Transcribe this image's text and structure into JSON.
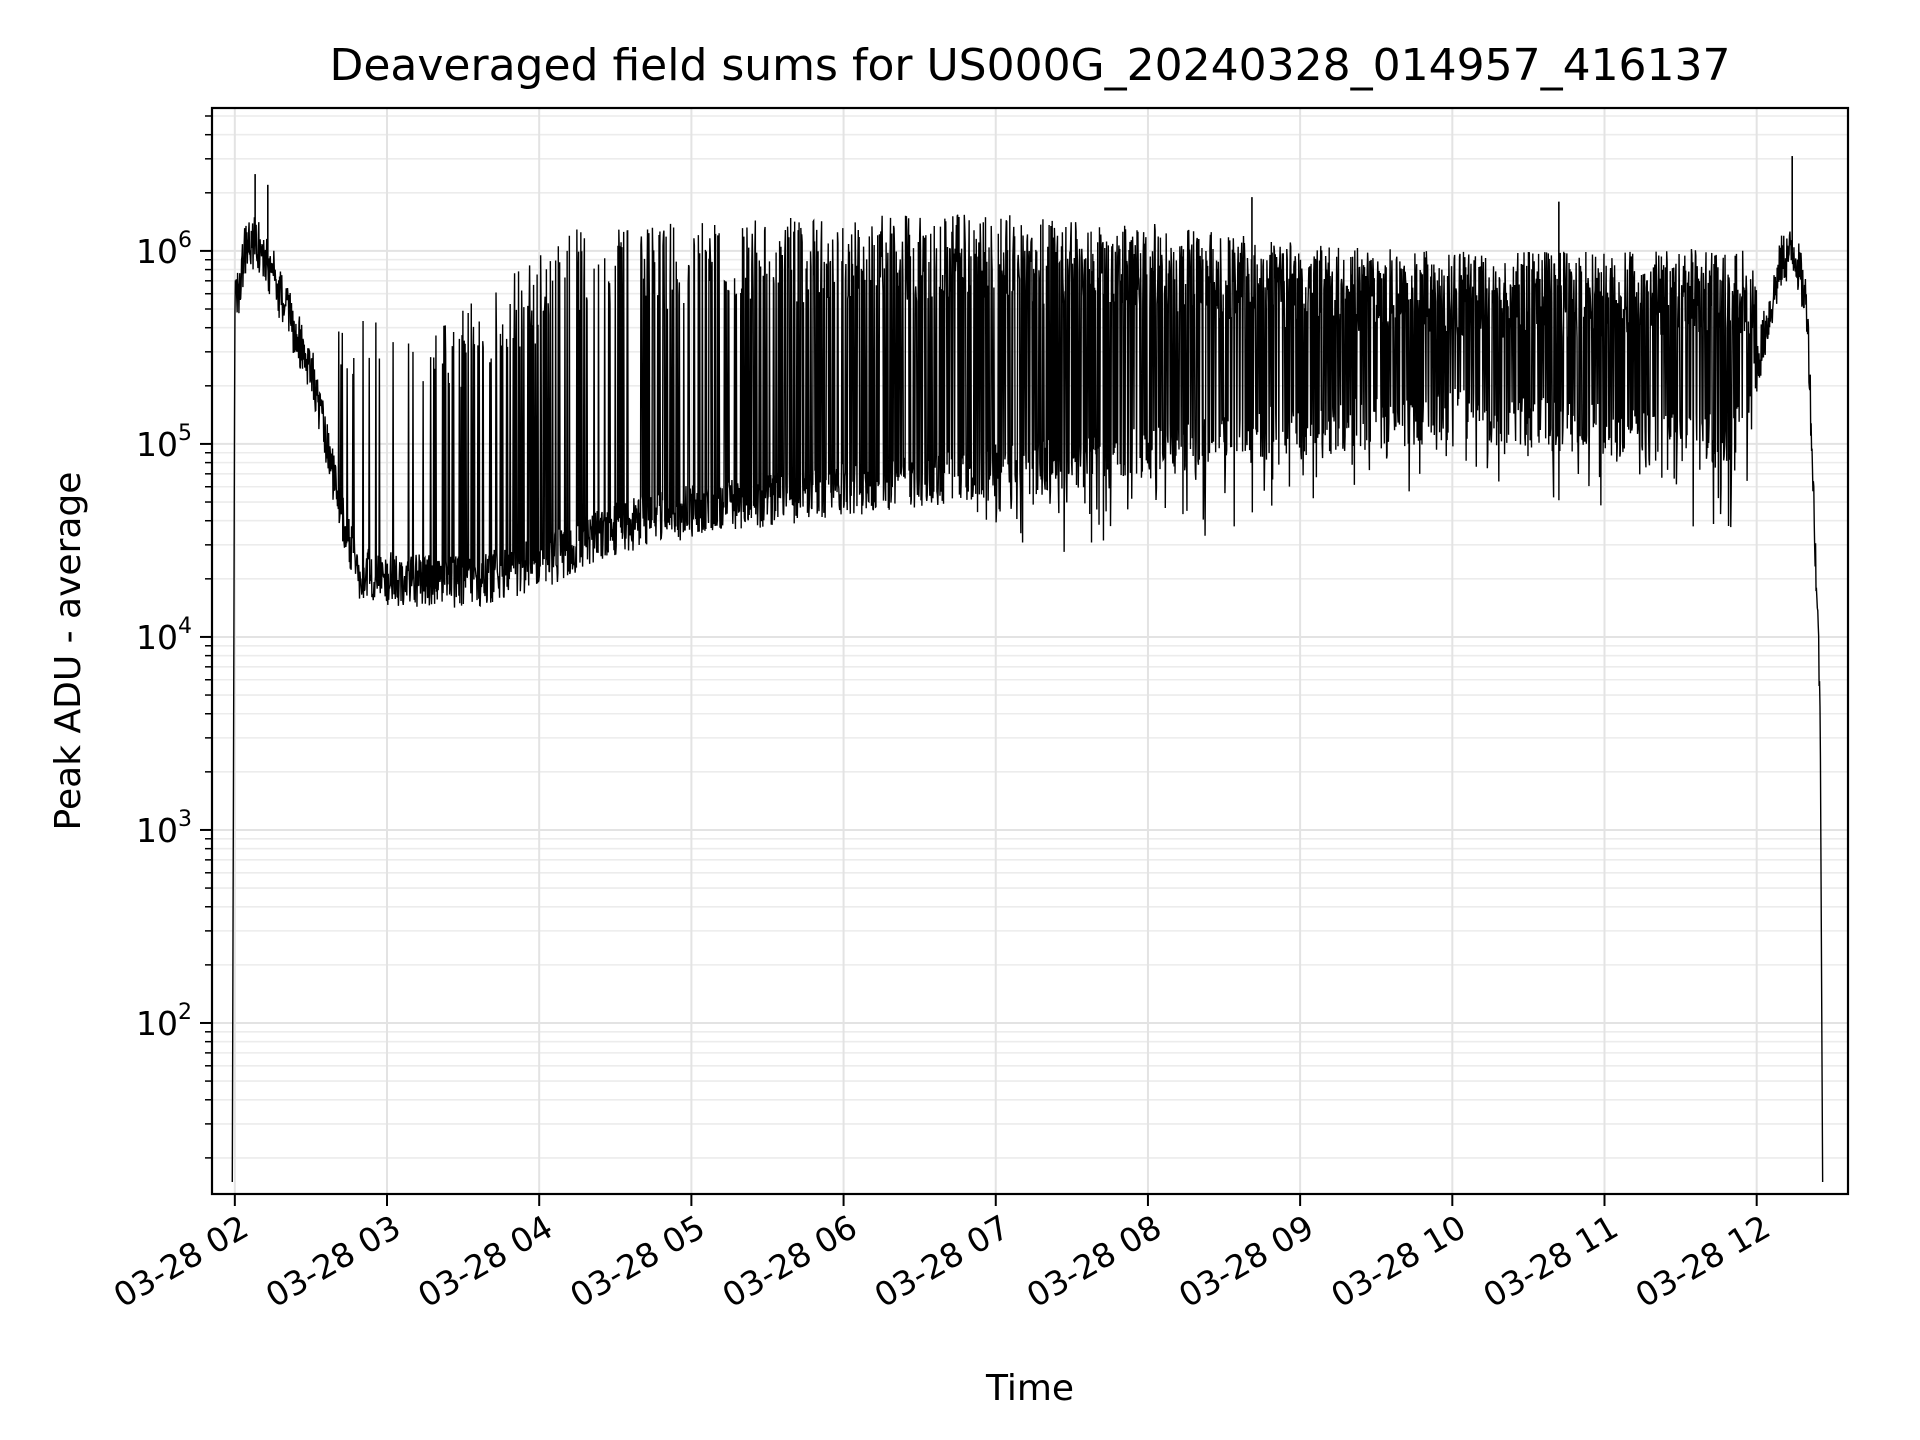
{
  "chart_data": {
    "type": "line",
    "title": "Deaveraged field sums for US000G_20240328_014957_416137",
    "xlabel": "Time",
    "ylabel": "Peak ADU - average",
    "y_scale": "log",
    "ylim": [
      13,
      5500000
    ],
    "xlim": [
      "2024-03-28T01:51:00",
      "2024-03-28T12:36:00"
    ],
    "grid": true,
    "line_color": "#000000",
    "x_ticks": [
      {
        "time": "2024-03-28T02:00:00",
        "label": "03-28 02"
      },
      {
        "time": "2024-03-28T03:00:00",
        "label": "03-28 03"
      },
      {
        "time": "2024-03-28T04:00:00",
        "label": "03-28 04"
      },
      {
        "time": "2024-03-28T05:00:00",
        "label": "03-28 05"
      },
      {
        "time": "2024-03-28T06:00:00",
        "label": "03-28 06"
      },
      {
        "time": "2024-03-28T07:00:00",
        "label": "03-28 07"
      },
      {
        "time": "2024-03-28T08:00:00",
        "label": "03-28 08"
      },
      {
        "time": "2024-03-28T09:00:00",
        "label": "03-28 09"
      },
      {
        "time": "2024-03-28T10:00:00",
        "label": "03-28 10"
      },
      {
        "time": "2024-03-28T11:00:00",
        "label": "03-28 11"
      },
      {
        "time": "2024-03-28T12:00:00",
        "label": "03-28 12"
      }
    ],
    "y_ticks": [
      {
        "value": 100,
        "base": "10",
        "exp": "2"
      },
      {
        "value": 1000,
        "base": "10",
        "exp": "3"
      },
      {
        "value": 10000,
        "base": "10",
        "exp": "4"
      },
      {
        "value": 100000,
        "base": "10",
        "exp": "5"
      },
      {
        "value": 1000000,
        "base": "10",
        "exp": "6"
      }
    ],
    "series": [
      {
        "baseline": [
          {
            "time": "2024-03-28T01:59:00",
            "value": 15
          },
          {
            "time": "2024-03-28T02:00:00",
            "value": 500000
          },
          {
            "time": "2024-03-28T02:05:00",
            "value": 1150000
          },
          {
            "time": "2024-03-28T02:10:00",
            "value": 1050000
          },
          {
            "time": "2024-03-28T02:15:00",
            "value": 750000
          },
          {
            "time": "2024-03-28T02:20:00",
            "value": 500000
          },
          {
            "time": "2024-03-28T02:30:00",
            "value": 250000
          },
          {
            "time": "2024-03-28T02:36:00",
            "value": 100000
          },
          {
            "time": "2024-03-28T02:42:00",
            "value": 45000
          },
          {
            "time": "2024-03-28T02:48:00",
            "value": 22000
          },
          {
            "time": "2024-03-28T03:00:00",
            "value": 20000
          },
          {
            "time": "2024-03-28T03:30:00",
            "value": 19000
          },
          {
            "time": "2024-03-28T04:00:00",
            "value": 24000
          },
          {
            "time": "2024-03-28T04:30:00",
            "value": 36000
          },
          {
            "time": "2024-03-28T05:00:00",
            "value": 45000
          },
          {
            "time": "2024-03-28T06:00:00",
            "value": 58000
          },
          {
            "time": "2024-03-28T07:00:00",
            "value": 72000
          },
          {
            "time": "2024-03-28T08:00:00",
            "value": 90000
          },
          {
            "time": "2024-03-28T09:00:00",
            "value": 120000
          },
          {
            "time": "2024-03-28T10:00:00",
            "value": 140000
          },
          {
            "time": "2024-03-28T11:00:00",
            "value": 120000
          },
          {
            "time": "2024-03-28T11:50:00",
            "value": 100000
          },
          {
            "time": "2024-03-28T12:00:00",
            "value": 250000
          },
          {
            "time": "2024-03-28T12:10:00",
            "value": 900000
          },
          {
            "time": "2024-03-28T12:15:00",
            "value": 1000000
          },
          {
            "time": "2024-03-28T12:20:00",
            "value": 500000
          },
          {
            "time": "2024-03-28T12:25:00",
            "value": 5000
          },
          {
            "time": "2024-03-28T12:26:00",
            "value": 15
          }
        ],
        "spike_peak_trend": [
          {
            "time": "2024-03-28T02:40:00",
            "value": 500000
          },
          {
            "time": "2024-03-28T03:30:00",
            "value": 500000
          },
          {
            "time": "2024-03-28T04:15:00",
            "value": 1300000
          },
          {
            "time": "2024-03-28T05:30:00",
            "value": 1500000
          },
          {
            "time": "2024-03-28T07:00:00",
            "value": 1550000
          },
          {
            "time": "2024-03-28T08:00:00",
            "value": 1400000
          },
          {
            "time": "2024-03-28T09:00:00",
            "value": 1100000
          },
          {
            "time": "2024-03-28T10:00:00",
            "value": 1000000
          },
          {
            "time": "2024-03-28T11:00:00",
            "value": 1000000
          },
          {
            "time": "2024-03-28T12:00:00",
            "value": 1050000
          }
        ],
        "notable_peaks": [
          {
            "time": "2024-03-28T02:08:00",
            "value": 2500000
          },
          {
            "time": "2024-03-28T02:13:00",
            "value": 2200000
          },
          {
            "time": "2024-03-28T08:41:00",
            "value": 1900000
          },
          {
            "time": "2024-03-28T10:42:00",
            "value": 1800000
          },
          {
            "time": "2024-03-28T12:14:00",
            "value": 3100000
          }
        ]
      }
    ]
  }
}
